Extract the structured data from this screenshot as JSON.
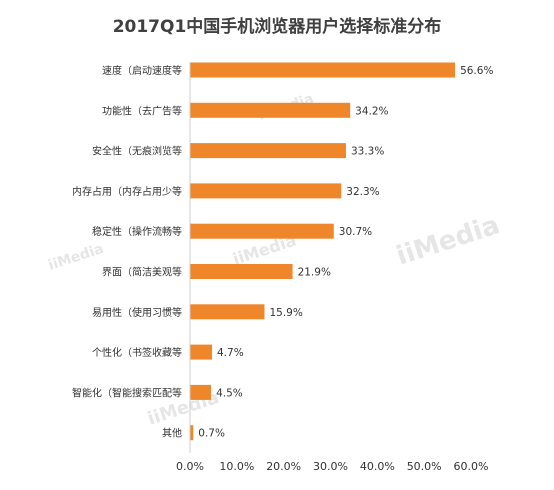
{
  "chart_data": {
    "type": "bar",
    "orientation": "horizontal",
    "title": "2017Q1中国手机浏览器用户选择标准分布",
    "categories": [
      "速度（启动速度等",
      "功能性（去广告等",
      "安全性（无痕浏览等",
      "内存占用（内存占用少等",
      "稳定性（操作流畅等",
      "界面（简洁美观等",
      "易用性（使用习惯等",
      "个性化（书签收藏等",
      "智能化（智能搜索匹配等",
      "其他"
    ],
    "values": [
      56.6,
      34.2,
      33.3,
      32.3,
      30.7,
      21.9,
      15.9,
      4.7,
      4.5,
      0.7
    ],
    "value_labels": [
      "56.6%",
      "34.2%",
      "33.3%",
      "32.3%",
      "30.7%",
      "21.9%",
      "15.9%",
      "4.7%",
      "4.5%",
      "0.7%"
    ],
    "xlim": [
      0,
      60
    ],
    "x_ticks": [
      "0.0%",
      "10.0%",
      "20.0%",
      "30.0%",
      "40.0%",
      "50.0%",
      "60.0%"
    ],
    "grid": false,
    "legend": "none",
    "watermark": "iiMedia",
    "colors": {
      "bar": "#F0862A",
      "title": "#404040",
      "text": "#333333",
      "axis": "#cccccc",
      "watermark": "#e6e6e6"
    }
  }
}
